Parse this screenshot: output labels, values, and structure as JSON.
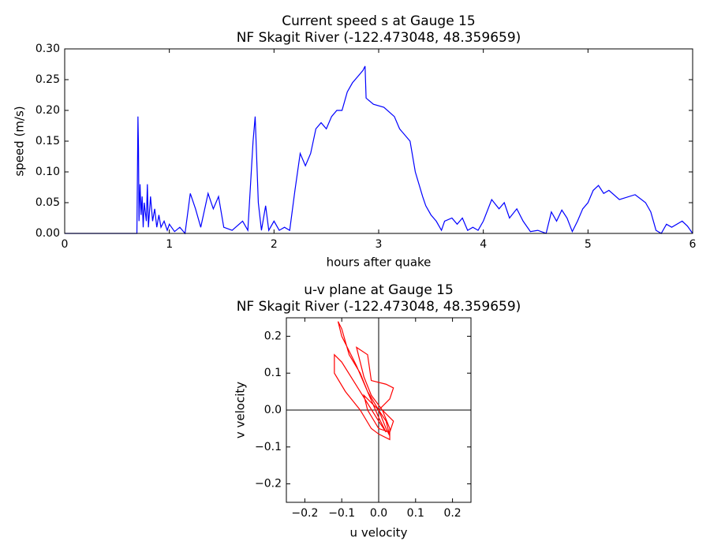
{
  "chart_data": [
    {
      "type": "line",
      "title": [
        "Current speed s at Gauge 15",
        "NF Skagit River  (-122.473048, 48.359659)"
      ],
      "xlabel": "hours after quake",
      "ylabel": "speed (m/s)",
      "color": "#0000ff",
      "xlim": [
        0,
        6
      ],
      "xticks": [
        0,
        1,
        2,
        3,
        4,
        5,
        6
      ],
      "ylim": [
        0,
        0.3
      ],
      "yticks": [
        {
          "value": 0,
          "label": "0.00"
        },
        0.05,
        {
          "value": 0.1,
          "label": "0.10"
        },
        0.15,
        {
          "value": 0.2,
          "label": "0.20"
        },
        0.25,
        {
          "value": 0.3,
          "label": "0.30"
        }
      ],
      "x": [
        0,
        0.69,
        0.7,
        0.705,
        0.71,
        0.72,
        0.73,
        0.74,
        0.75,
        0.76,
        0.78,
        0.79,
        0.8,
        0.82,
        0.84,
        0.86,
        0.88,
        0.9,
        0.92,
        0.95,
        0.98,
        1.0,
        1.05,
        1.1,
        1.15,
        1.2,
        1.25,
        1.3,
        1.37,
        1.42,
        1.47,
        1.52,
        1.6,
        1.7,
        1.75,
        1.8,
        1.82,
        1.85,
        1.88,
        1.92,
        1.95,
        2.0,
        2.05,
        2.1,
        2.15,
        2.2,
        2.25,
        2.3,
        2.35,
        2.4,
        2.45,
        2.5,
        2.55,
        2.6,
        2.65,
        2.7,
        2.75,
        2.8,
        2.85,
        2.87,
        2.88,
        2.95,
        3.05,
        3.15,
        3.2,
        3.3,
        3.35,
        3.42,
        3.45,
        3.5,
        3.55,
        3.6,
        3.63,
        3.7,
        3.75,
        3.8,
        3.85,
        3.9,
        3.95,
        4.0,
        4.08,
        4.15,
        4.2,
        4.25,
        4.32,
        4.38,
        4.45,
        4.52,
        4.6,
        4.65,
        4.7,
        4.75,
        4.8,
        4.85,
        4.9,
        4.95,
        5.0,
        5.05,
        5.1,
        5.15,
        5.2,
        5.3,
        5.45,
        5.55,
        5.6,
        5.65,
        5.7,
        5.75,
        5.8,
        5.9,
        5.95,
        6.0
      ],
      "values": [
        0,
        0,
        0.19,
        0.14,
        0.02,
        0.08,
        0.03,
        0.06,
        0.01,
        0.05,
        0.02,
        0.08,
        0.01,
        0.06,
        0.02,
        0.04,
        0.01,
        0.03,
        0.01,
        0.02,
        0.005,
        0.015,
        0.003,
        0.01,
        0,
        0.065,
        0.04,
        0.01,
        0.065,
        0.04,
        0.06,
        0.01,
        0.005,
        0.02,
        0.005,
        0.15,
        0.19,
        0.05,
        0.005,
        0.045,
        0.005,
        0.02,
        0.005,
        0.01,
        0.005,
        0.07,
        0.13,
        0.11,
        0.13,
        0.17,
        0.18,
        0.17,
        0.19,
        0.2,
        0.2,
        0.23,
        0.245,
        0.255,
        0.265,
        0.272,
        0.22,
        0.21,
        0.205,
        0.19,
        0.17,
        0.15,
        0.1,
        0.06,
        0.045,
        0.03,
        0.02,
        0.005,
        0.02,
        0.025,
        0.015,
        0.025,
        0.005,
        0.01,
        0.005,
        0.02,
        0.055,
        0.04,
        0.05,
        0.025,
        0.04,
        0.02,
        0.003,
        0.005,
        0,
        0.035,
        0.02,
        0.038,
        0.025,
        0.003,
        0.02,
        0.04,
        0.05,
        0.07,
        0.078,
        0.065,
        0.07,
        0.055,
        0.063,
        0.05,
        0.035,
        0.005,
        0,
        0.015,
        0.01,
        0.02,
        0.012,
        0
      ]
    },
    {
      "type": "line",
      "title": [
        "u-v plane at Gauge 15",
        "NF Skagit River  (-122.473048, 48.359659)"
      ],
      "xlabel": "u velocity",
      "ylabel": "v velocity",
      "color": "#ff0000",
      "zero_lines": true,
      "xlim": [
        -0.25,
        0.25
      ],
      "xticks": [
        {
          "value": -0.2,
          "label": "−0.2"
        },
        {
          "value": -0.1,
          "label": "−0.1"
        },
        {
          "value": 0,
          "label": "0.0"
        },
        0.1,
        0.2
      ],
      "ylim": [
        -0.25,
        0.25
      ],
      "yticks": [
        {
          "value": -0.2,
          "label": "−0.2"
        },
        {
          "value": -0.1,
          "label": "−0.1"
        },
        {
          "value": 0,
          "label": "0.0"
        },
        0.1,
        0.2
      ],
      "x": [
        0,
        0.02,
        0.03,
        0.02,
        0,
        -0.03,
        -0.06,
        -0.1,
        -0.11,
        -0.1,
        -0.08,
        -0.05,
        -0.03,
        0,
        0.02,
        0,
        -0.05,
        -0.1,
        -0.12,
        -0.12,
        -0.09,
        -0.05,
        -0.02,
        0,
        0.03,
        0.03,
        0.01,
        -0.02,
        -0.04,
        -0.06,
        -0.03,
        -0.02,
        0.02,
        0.04,
        0.03,
        0,
        -0.04,
        -0.03,
        0,
        0.03,
        0.04,
        0.01
      ],
      "values": [
        0,
        -0.03,
        -0.07,
        -0.05,
        0,
        0.05,
        0.12,
        0.2,
        0.24,
        0.22,
        0.15,
        0.1,
        0.05,
        -0.02,
        -0.06,
        -0.03,
        0.05,
        0.13,
        0.15,
        0.1,
        0.05,
        0,
        -0.05,
        -0.065,
        -0.08,
        -0.05,
        0,
        0.04,
        0.09,
        0.17,
        0.15,
        0.08,
        0.07,
        0.06,
        0.03,
        0,
        0.04,
        0,
        -0.05,
        -0.06,
        -0.03,
        0
      ]
    }
  ]
}
